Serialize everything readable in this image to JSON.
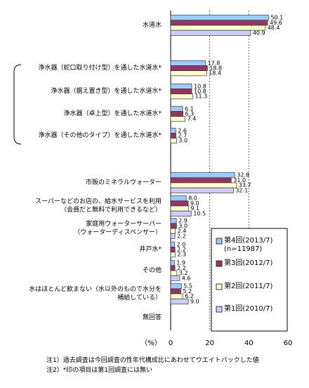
{
  "chart_data": {
    "type": "bar",
    "orientation": "horizontal",
    "categories": [
      "水道水",
      "浄水器（蛇口取り付け型）を通した水道水*",
      "浄水器（据え置き型）を通した水道水*",
      "浄水器（卓上型）を通した水道水*",
      "浄水器（その他のタイプ）を通した水道水*",
      "市販のミネラルウォーター",
      "スーパーなどのお店の、給水サービスを利用\n（会員だと無料で利用できるなど）",
      "家庭用ウォーターサーバー\n（ウォーターディスペンサー）",
      "井戸水*",
      "その他",
      "水はほとんど飲まない（水以外のもので水分を\n補給している）",
      "無回答"
    ],
    "series": [
      {
        "name": "第4回(2013/7)\n(n=11987)",
        "color": "#99ccff",
        "values": [
          50.1,
          17.8,
          10.8,
          6.1,
          2.6,
          32.8,
          8.0,
          2.9,
          2.0,
          1.9,
          5.5,
          null
        ],
        "value_labels": [
          "50.1",
          "17.8",
          "10.8",
          "6.1",
          "2.6",
          "32.8",
          "8.0",
          "2.9",
          "2.0",
          "1.9",
          "5.5",
          null
        ]
      },
      {
        "name": "第3回(2012/7)",
        "color": "#993366",
        "values": [
          49.6,
          18.8,
          10.8,
          6.3,
          2.7,
          31.0,
          9.0,
          3.0,
          2.2,
          2.2,
          5.2,
          null
        ],
        "value_labels": [
          "49.6",
          "18.8",
          "10.8",
          "6.3",
          "2.7",
          "31.0",
          "9.0",
          "3.0",
          "2.2",
          "2.2",
          "5.2",
          null
        ]
      },
      {
        "name": "第2回(2011/7)",
        "color": "#ffffcc",
        "values": [
          48.4,
          18.4,
          11.3,
          7.4,
          3.0,
          33.7,
          9.1,
          2.4,
          2.3,
          3.2,
          6.2,
          null
        ],
        "value_labels": [
          "48.4",
          "18.4",
          "11.3",
          "7.4",
          "3.0",
          "33.7",
          "9.1",
          "2.4",
          "2.3",
          "3.2",
          "6.2",
          null
        ]
      },
      {
        "name": "第1回(2010/7)",
        "color": "#ccccff",
        "values": [
          40.9,
          null,
          null,
          null,
          null,
          32.1,
          10.5,
          2.2,
          null,
          4.6,
          9.0,
          null
        ],
        "value_labels": [
          "40.9",
          null,
          null,
          null,
          null,
          "32.1",
          "10.5",
          "2.2",
          null,
          "4.6",
          "9.0",
          null
        ]
      }
    ],
    "x_label": "（%）",
    "xlim": [
      0,
      60
    ],
    "xticks": [
      0,
      20,
      40,
      60
    ],
    "grid": true,
    "notes": [
      "注1）過去調査は今回調査の性年代構成比にあわせてウエイトバックした値",
      "注2）*印の項目は第1回調査には無い"
    ]
  }
}
